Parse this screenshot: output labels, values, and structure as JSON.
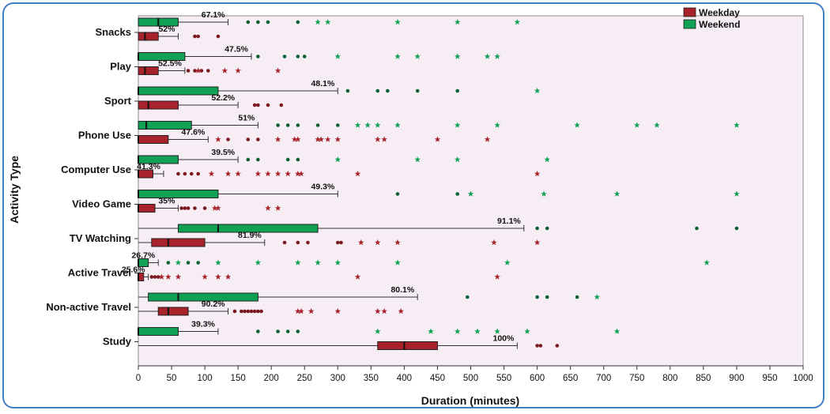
{
  "chart_data": {
    "type": "boxplot",
    "orientation": "horizontal",
    "xlabel": "Duration (minutes)",
    "ylabel": "Activity Type",
    "xlim": [
      0,
      1000
    ],
    "xticks": [
      0,
      50,
      100,
      150,
      200,
      250,
      300,
      350,
      400,
      450,
      500,
      550,
      600,
      650,
      700,
      750,
      800,
      850,
      900,
      950,
      1000
    ],
    "legend": {
      "position": "top-right",
      "entries": [
        "Weekday",
        "Weekend"
      ]
    },
    "colors": {
      "Weekday": "#a8222b",
      "Weekend": "#10a154",
      "background": "#f6eef4"
    },
    "categories": [
      "Snacks",
      "Play",
      "Sport",
      "Phone Use",
      "Computer Use",
      "Video Game",
      "TV Watching",
      "Active Travel",
      "Non-active Travel",
      "Study"
    ],
    "series": [
      {
        "name": "Weekend",
        "boxes": [
          {
            "whisker_low": 0,
            "q1": 0,
            "median": 30,
            "q3": 60,
            "whisker_high": 135,
            "outliers": [
              165,
              180,
              195,
              240
            ],
            "extremes": [
              270,
              285,
              390,
              480,
              570
            ],
            "pct_label": "67.1%"
          },
          {
            "whisker_low": 0,
            "q1": 0,
            "median": 0,
            "q3": 70,
            "whisker_high": 170,
            "outliers": [
              180,
              220,
              240,
              250
            ],
            "extremes": [
              300,
              390,
              420,
              480,
              525,
              540
            ],
            "pct_label": "47.5%"
          },
          {
            "whisker_low": 0,
            "q1": 0,
            "median": 0,
            "q3": 120,
            "whisker_high": 300,
            "outliers": [
              315,
              360,
              375,
              420,
              480
            ],
            "extremes": [
              600
            ],
            "pct_label": "48.1%"
          },
          {
            "whisker_low": 0,
            "q1": 0,
            "median": 12,
            "q3": 80,
            "whisker_high": 180,
            "outliers": [
              210,
              225,
              240,
              270,
              300
            ],
            "extremes": [
              330,
              345,
              360,
              390,
              480,
              540,
              660,
              750,
              780,
              900
            ],
            "pct_label": "51%"
          },
          {
            "whisker_low": 0,
            "q1": 0,
            "median": 0,
            "q3": 60,
            "whisker_high": 150,
            "outliers": [
              165,
              180,
              225,
              240
            ],
            "extremes": [
              300,
              420,
              480,
              615
            ],
            "pct_label": "39.5%"
          },
          {
            "whisker_low": 0,
            "q1": 0,
            "median": 0,
            "q3": 120,
            "whisker_high": 300,
            "outliers": [
              390,
              480
            ],
            "extremes": [
              500,
              610,
              720,
              900
            ],
            "pct_label": "49.3%"
          },
          {
            "whisker_low": 0,
            "q1": 60,
            "median": 120,
            "q3": 270,
            "whisker_high": 580,
            "outliers": [
              600,
              615,
              840,
              900
            ],
            "extremes": [],
            "pct_label": "91.1%"
          },
          {
            "whisker_low": 0,
            "q1": 0,
            "median": 0,
            "q3": 15,
            "whisker_high": 30,
            "outliers": [
              45,
              75,
              90
            ],
            "extremes": [
              60,
              120,
              180,
              240,
              270,
              300,
              390,
              555,
              855
            ],
            "pct_label": "26.7%"
          },
          {
            "whisker_low": 0,
            "q1": 15,
            "median": 60,
            "q3": 180,
            "whisker_high": 420,
            "outliers": [
              495,
              600,
              615,
              660
            ],
            "extremes": [
              690
            ],
            "pct_label": "80.1%"
          },
          {
            "whisker_low": 0,
            "q1": 0,
            "median": 0,
            "q3": 60,
            "whisker_high": 120,
            "outliers": [
              180,
              210,
              225,
              240
            ],
            "extremes": [
              360,
              440,
              480,
              510,
              540,
              585,
              720
            ],
            "pct_label": "39.3%"
          }
        ]
      },
      {
        "name": "Weekday",
        "boxes": [
          {
            "whisker_low": 0,
            "q1": 0,
            "median": 10,
            "q3": 30,
            "whisker_high": 60,
            "outliers": [
              85,
              90,
              120
            ],
            "extremes": [],
            "pct_label": "52%"
          },
          {
            "whisker_low": 0,
            "q1": 0,
            "median": 10,
            "q3": 30,
            "whisker_high": 70,
            "outliers": [
              75,
              85,
              95,
              105
            ],
            "extremes": [
              90,
              130,
              150,
              210
            ],
            "pct_label": "52.5%"
          },
          {
            "whisker_low": 0,
            "q1": 0,
            "median": 15,
            "q3": 60,
            "whisker_high": 150,
            "outliers": [
              175,
              180,
              195,
              215
            ],
            "extremes": [],
            "pct_label": "52.2%"
          },
          {
            "whisker_low": 0,
            "q1": 0,
            "median": 0,
            "q3": 45,
            "whisker_high": 105,
            "outliers": [
              135,
              165,
              180
            ],
            "extremes": [
              120,
              210,
              235,
              240,
              270,
              275,
              285,
              300,
              360,
              370,
              450,
              525
            ],
            "pct_label": "47.6%"
          },
          {
            "whisker_low": 0,
            "q1": 0,
            "median": 0,
            "q3": 22,
            "whisker_high": 38,
            "outliers": [
              60,
              70,
              80,
              90
            ],
            "extremes": [
              110,
              135,
              150,
              180,
              195,
              210,
              225,
              240,
              245,
              330,
              600
            ],
            "pct_label": "41.3%"
          },
          {
            "whisker_low": 0,
            "q1": 0,
            "median": 0,
            "q3": 25,
            "whisker_high": 60,
            "outliers": [
              65,
              70,
              75,
              85,
              100
            ],
            "extremes": [
              115,
              120,
              195,
              210
            ],
            "pct_label": "35%"
          },
          {
            "whisker_low": 0,
            "q1": 20,
            "median": 45,
            "q3": 100,
            "whisker_high": 190,
            "outliers": [
              220,
              240,
              255,
              300,
              305
            ],
            "extremes": [
              335,
              360,
              390,
              535,
              600
            ],
            "pct_label": "81.9%"
          },
          {
            "whisker_low": 0,
            "q1": 0,
            "median": 0,
            "q3": 8,
            "whisker_high": 15,
            "outliers": [
              20,
              25,
              30
            ],
            "extremes": [
              35,
              45,
              60,
              100,
              120,
              135,
              330,
              540
            ],
            "pct_label": "25.6%"
          },
          {
            "whisker_low": 0,
            "q1": 30,
            "median": 45,
            "q3": 75,
            "whisker_high": 135,
            "outliers": [
              145,
              155,
              160,
              165,
              170,
              175,
              180,
              185
            ],
            "extremes": [
              240,
              245,
              260,
              300,
              360,
              370,
              395
            ],
            "pct_label": "90.2%"
          },
          {
            "whisker_low": 0,
            "q1": 360,
            "median": 400,
            "q3": 450,
            "whisker_high": 570,
            "outliers": [
              600,
              605,
              630
            ],
            "extremes": [],
            "pct_label": "100%"
          }
        ]
      }
    ]
  }
}
